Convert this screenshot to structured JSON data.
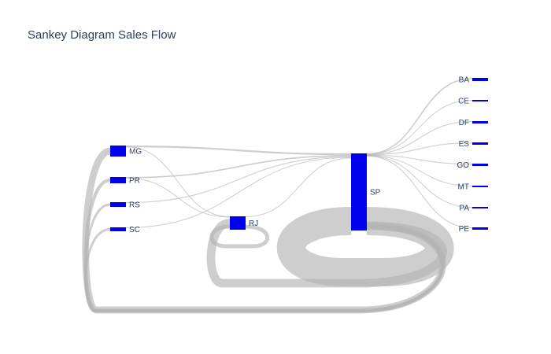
{
  "chart_data": {
    "type": "sankey",
    "title": "Sankey Diagram Sales Flow",
    "node_color": "#0000ee",
    "link_color": "#b4b4b4",
    "link_opacity": 0.65,
    "nodes": [
      "MG",
      "PR",
      "RS",
      "SC",
      "RJ",
      "SP",
      "BA",
      "CE",
      "DF",
      "ES",
      "GO",
      "MT",
      "PA",
      "PE"
    ],
    "links": [
      {
        "source": "MG",
        "target": "SP",
        "value": 4
      },
      {
        "source": "MG",
        "target": "RJ",
        "value": 1
      },
      {
        "source": "PR",
        "target": "SP",
        "value": 3
      },
      {
        "source": "PR",
        "target": "RJ",
        "value": 1
      },
      {
        "source": "RS",
        "target": "SP",
        "value": 2
      },
      {
        "source": "SC",
        "target": "SP",
        "value": 1
      },
      {
        "source": "RJ",
        "target": "SP",
        "value": 1
      },
      {
        "source": "SP",
        "target": "BA",
        "value": 3
      },
      {
        "source": "SP",
        "target": "CE",
        "value": 1
      },
      {
        "source": "SP",
        "target": "DF",
        "value": 2
      },
      {
        "source": "SP",
        "target": "ES",
        "value": 2
      },
      {
        "source": "SP",
        "target": "GO",
        "value": 2
      },
      {
        "source": "SP",
        "target": "MT",
        "value": 1
      },
      {
        "source": "SP",
        "target": "PA",
        "value": 1
      },
      {
        "source": "SP",
        "target": "PE",
        "value": 2
      },
      {
        "source": "SP",
        "target": "MG",
        "value": 6
      },
      {
        "source": "SP",
        "target": "PR",
        "value": 3
      },
      {
        "source": "SP",
        "target": "RS",
        "value": 2
      },
      {
        "source": "SP",
        "target": "SC",
        "value": 2
      },
      {
        "source": "SP",
        "target": "RJ",
        "value": 5
      },
      {
        "source": "SP",
        "target": "SP",
        "value": 30
      },
      {
        "source": "RJ",
        "target": "RJ",
        "value": 4
      }
    ]
  }
}
